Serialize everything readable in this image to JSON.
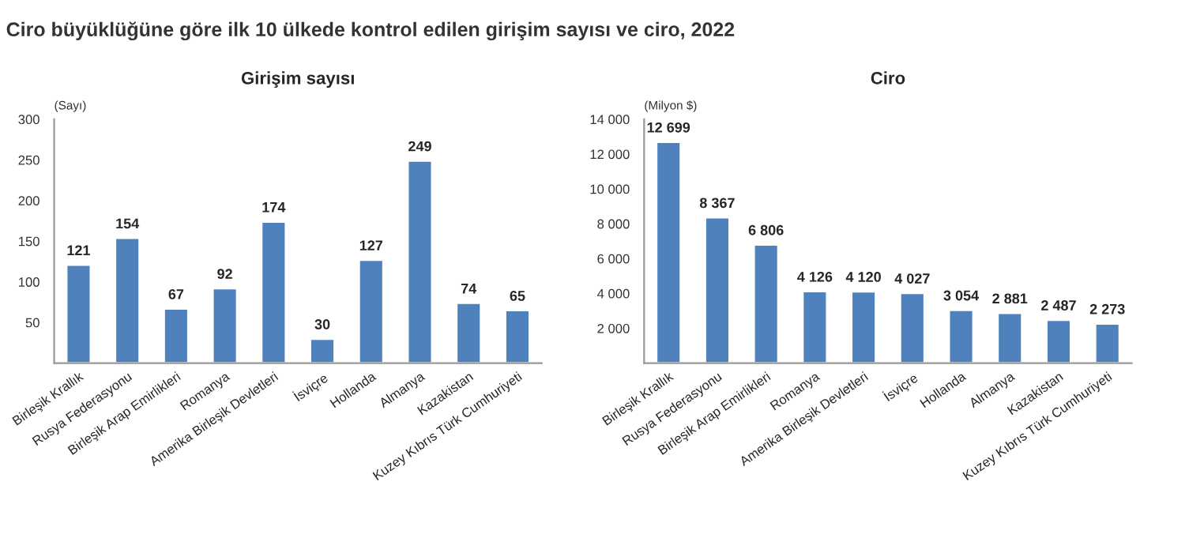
{
  "chart_data": [
    {
      "type": "bar",
      "title": "Girişim sayısı",
      "ylabel": "(Sayı)",
      "annotations": [
        "Ciro büyüklüğüne göre ilk 10 ülkede kontrol edilen girişim sayısı ve ciro, 2022"
      ],
      "categories": [
        "Birleşik Krallık",
        "Rusya Federasyonu",
        "Birleşik Arap Emirlikleri",
        "Romanya",
        "Amerika Birleşik Devletleri",
        "İsviçre",
        "Hollanda",
        "Almanya",
        "Kazakistan",
        "Kuzey Kıbrıs Türk Cumhuriyeti"
      ],
      "series": [
        {
          "color": "#4f81bd",
          "values": [
            121,
            154,
            67,
            92,
            174,
            30,
            127,
            249,
            74,
            65
          ]
        }
      ],
      "data_labels": true,
      "ylim": [
        0,
        300
      ],
      "yticks": [
        50,
        100,
        150,
        200,
        250,
        300
      ],
      "grid": false,
      "legend": false
    },
    {
      "type": "bar",
      "title": "Ciro",
      "ylabel": "(Milyon $)",
      "categories": [
        "Birleşik Krallık",
        "Rusya Federasyonu",
        "Birleşik Arap Emirlikleri",
        "Romanya",
        "Amerika Birleşik Devletleri",
        "İsviçre",
        "Hollanda",
        "Almanya",
        "Kazakistan",
        "Kuzey Kıbrıs Türk Cumhuriyeti"
      ],
      "series": [
        {
          "color": "#4f81bd",
          "values": [
            12699,
            8367,
            6806,
            4126,
            4120,
            4027,
            3054,
            2881,
            2487,
            2273
          ],
          "value_labels": [
            "12 699",
            "8 367",
            "6 806",
            "4 126",
            "4 120",
            "4 027",
            "3 054",
            "2 881",
            "2 487",
            "2 273"
          ]
        }
      ],
      "ylim": [
        0,
        14000
      ],
      "yticks": [
        {
          "value": 2000,
          "label": "2 000"
        },
        {
          "value": 4000,
          "label": "4 000"
        },
        {
          "value": 6000,
          "label": "6 000"
        },
        {
          "value": 8000,
          "label": "8 000"
        },
        {
          "value": 10000,
          "label": "10 000"
        },
        {
          "value": 12000,
          "label": "12 000"
        },
        {
          "value": 14000,
          "label": "14 000"
        }
      ],
      "grid": false,
      "legend": false
    }
  ]
}
